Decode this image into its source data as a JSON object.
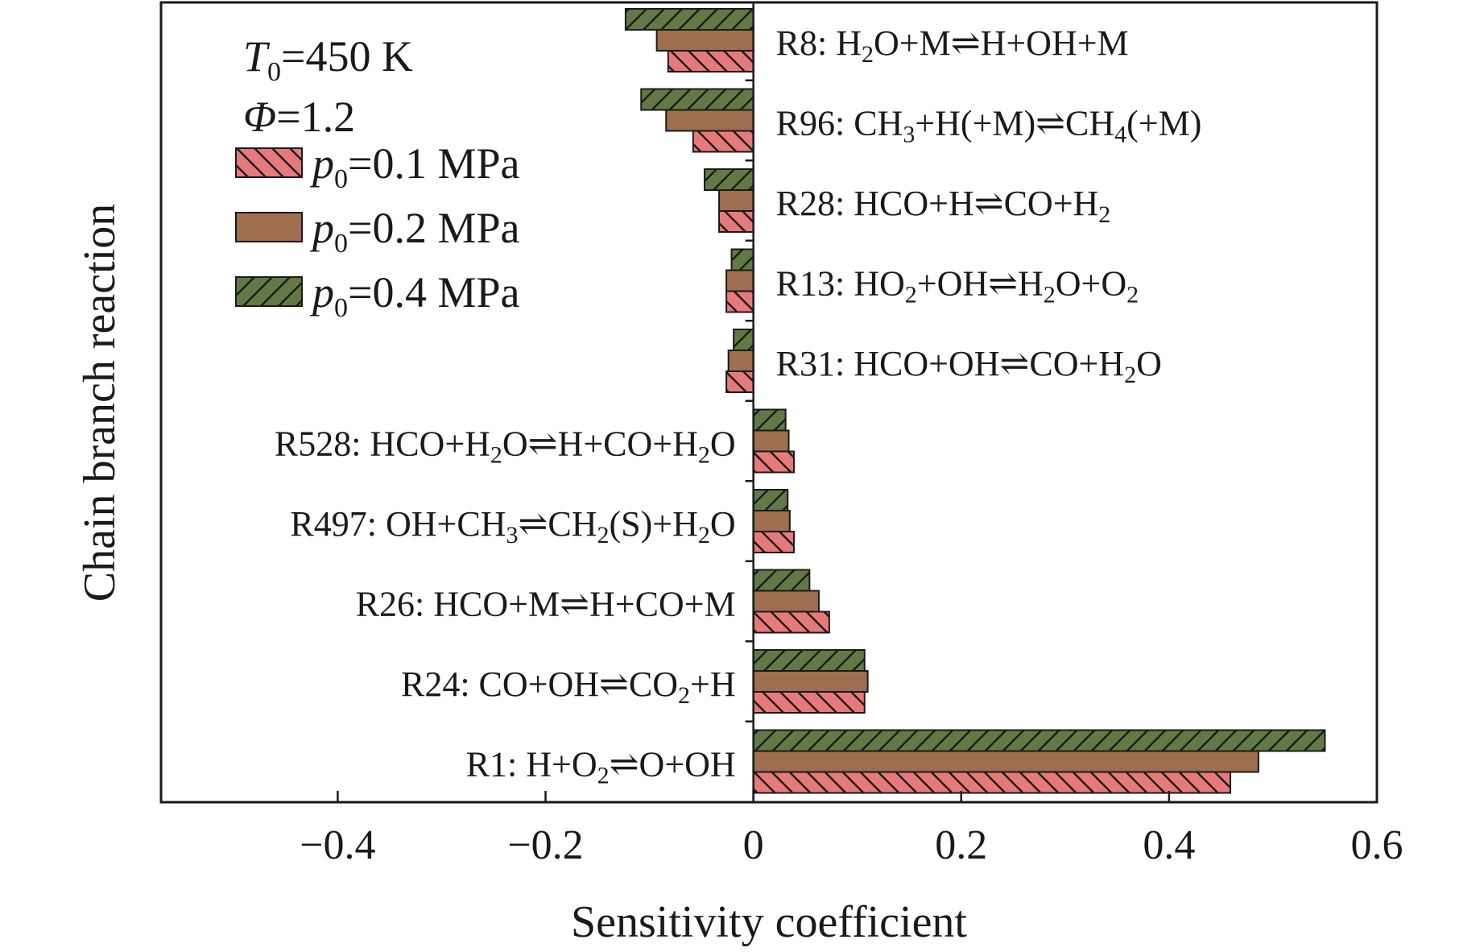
{
  "chart_data": {
    "type": "bar",
    "orientation": "horizontal",
    "xlabel": "Sensitivity coefficient",
    "ylabel": "Chain branch reaction",
    "xlim": [
      -0.57,
      0.6
    ],
    "xticks": [
      -0.4,
      -0.2,
      0,
      0.2,
      0.4,
      0.6
    ],
    "xtick_labels": [
      "−0.4",
      "−0.2",
      "0",
      "0.2",
      "0.4",
      "0.6"
    ],
    "grid": false,
    "legend_position": "top-left",
    "conditions": {
      "t0": {
        "symbol": "T",
        "sub": "0",
        "rest": "=450 K"
      },
      "phi": {
        "symbol": "Φ",
        "rest": "=1.2"
      }
    },
    "categories": [
      {
        "id": "R8",
        "label": [
          [
            "R8: H",
            ""
          ],
          [
            "2",
            "sub"
          ],
          [
            "O+M⇌H+OH+M",
            ""
          ]
        ],
        "side": "right"
      },
      {
        "id": "R96",
        "label": [
          [
            "R96: CH",
            ""
          ],
          [
            "3",
            "sub"
          ],
          [
            "+H(+M)⇌CH",
            ""
          ],
          [
            "4",
            "sub"
          ],
          [
            "(+M)",
            ""
          ]
        ],
        "side": "right"
      },
      {
        "id": "R28",
        "label": [
          [
            "R28: HCO+H⇌CO+H",
            ""
          ],
          [
            "2",
            "sub"
          ]
        ],
        "side": "right"
      },
      {
        "id": "R13",
        "label": [
          [
            "R13: HO",
            ""
          ],
          [
            "2",
            "sub"
          ],
          [
            "+OH⇌H",
            ""
          ],
          [
            "2",
            "sub"
          ],
          [
            "O+O",
            ""
          ],
          [
            "2",
            "sub"
          ]
        ],
        "side": "right"
      },
      {
        "id": "R31",
        "label": [
          [
            "R31: HCO+OH⇌CO+H",
            ""
          ],
          [
            "2",
            "sub"
          ],
          [
            "O",
            ""
          ]
        ],
        "side": "right"
      },
      {
        "id": "R528",
        "label": [
          [
            "R528: HCO+H",
            ""
          ],
          [
            "2",
            "sub"
          ],
          [
            "O⇌H+CO+H",
            ""
          ],
          [
            "2",
            "sub"
          ],
          [
            "O",
            ""
          ]
        ],
        "side": "left"
      },
      {
        "id": "R497",
        "label": [
          [
            "R497: OH+CH",
            ""
          ],
          [
            "3",
            "sub"
          ],
          [
            "⇌CH",
            ""
          ],
          [
            "2",
            "sub"
          ],
          [
            "(S)+H",
            ""
          ],
          [
            "2",
            "sub"
          ],
          [
            "O",
            ""
          ]
        ],
        "side": "left"
      },
      {
        "id": "R26",
        "label": [
          [
            "R26: HCO+M⇌H+CO+M",
            ""
          ]
        ],
        "side": "left"
      },
      {
        "id": "R24",
        "label": [
          [
            "R24: CO+OH⇌CO",
            ""
          ],
          [
            "2",
            "sub"
          ],
          [
            "+H",
            ""
          ]
        ],
        "side": "left"
      },
      {
        "id": "R1",
        "label": [
          [
            "R1: H+O",
            ""
          ],
          [
            "2",
            "sub"
          ],
          [
            "⇌O+OH",
            ""
          ]
        ],
        "side": "left"
      }
    ],
    "series": [
      {
        "name": "p0=0.4 MPa",
        "legend": {
          "symbol": "p",
          "sub": "0",
          "rest": "=0.4 MPa"
        },
        "color": "#617a45",
        "hatch": "forward",
        "values": [
          -0.123,
          -0.108,
          -0.047,
          -0.021,
          -0.019,
          0.031,
          0.033,
          0.054,
          0.107,
          0.55
        ]
      },
      {
        "name": "p0=0.2 MPa",
        "legend": {
          "symbol": "p",
          "sub": "0",
          "rest": "=0.2 MPa"
        },
        "color": "#9e6e4f",
        "hatch": "none",
        "values": [
          -0.093,
          -0.084,
          -0.033,
          -0.026,
          -0.024,
          0.034,
          0.035,
          0.063,
          0.11,
          0.486
        ]
      },
      {
        "name": "p0=0.1 MPa",
        "legend": {
          "symbol": "p",
          "sub": "0",
          "rest": "=0.1 MPa"
        },
        "color": "#e8797b",
        "hatch": "back",
        "values": [
          -0.082,
          -0.058,
          -0.033,
          -0.026,
          -0.026,
          0.039,
          0.039,
          0.073,
          0.107,
          0.459
        ]
      }
    ]
  }
}
